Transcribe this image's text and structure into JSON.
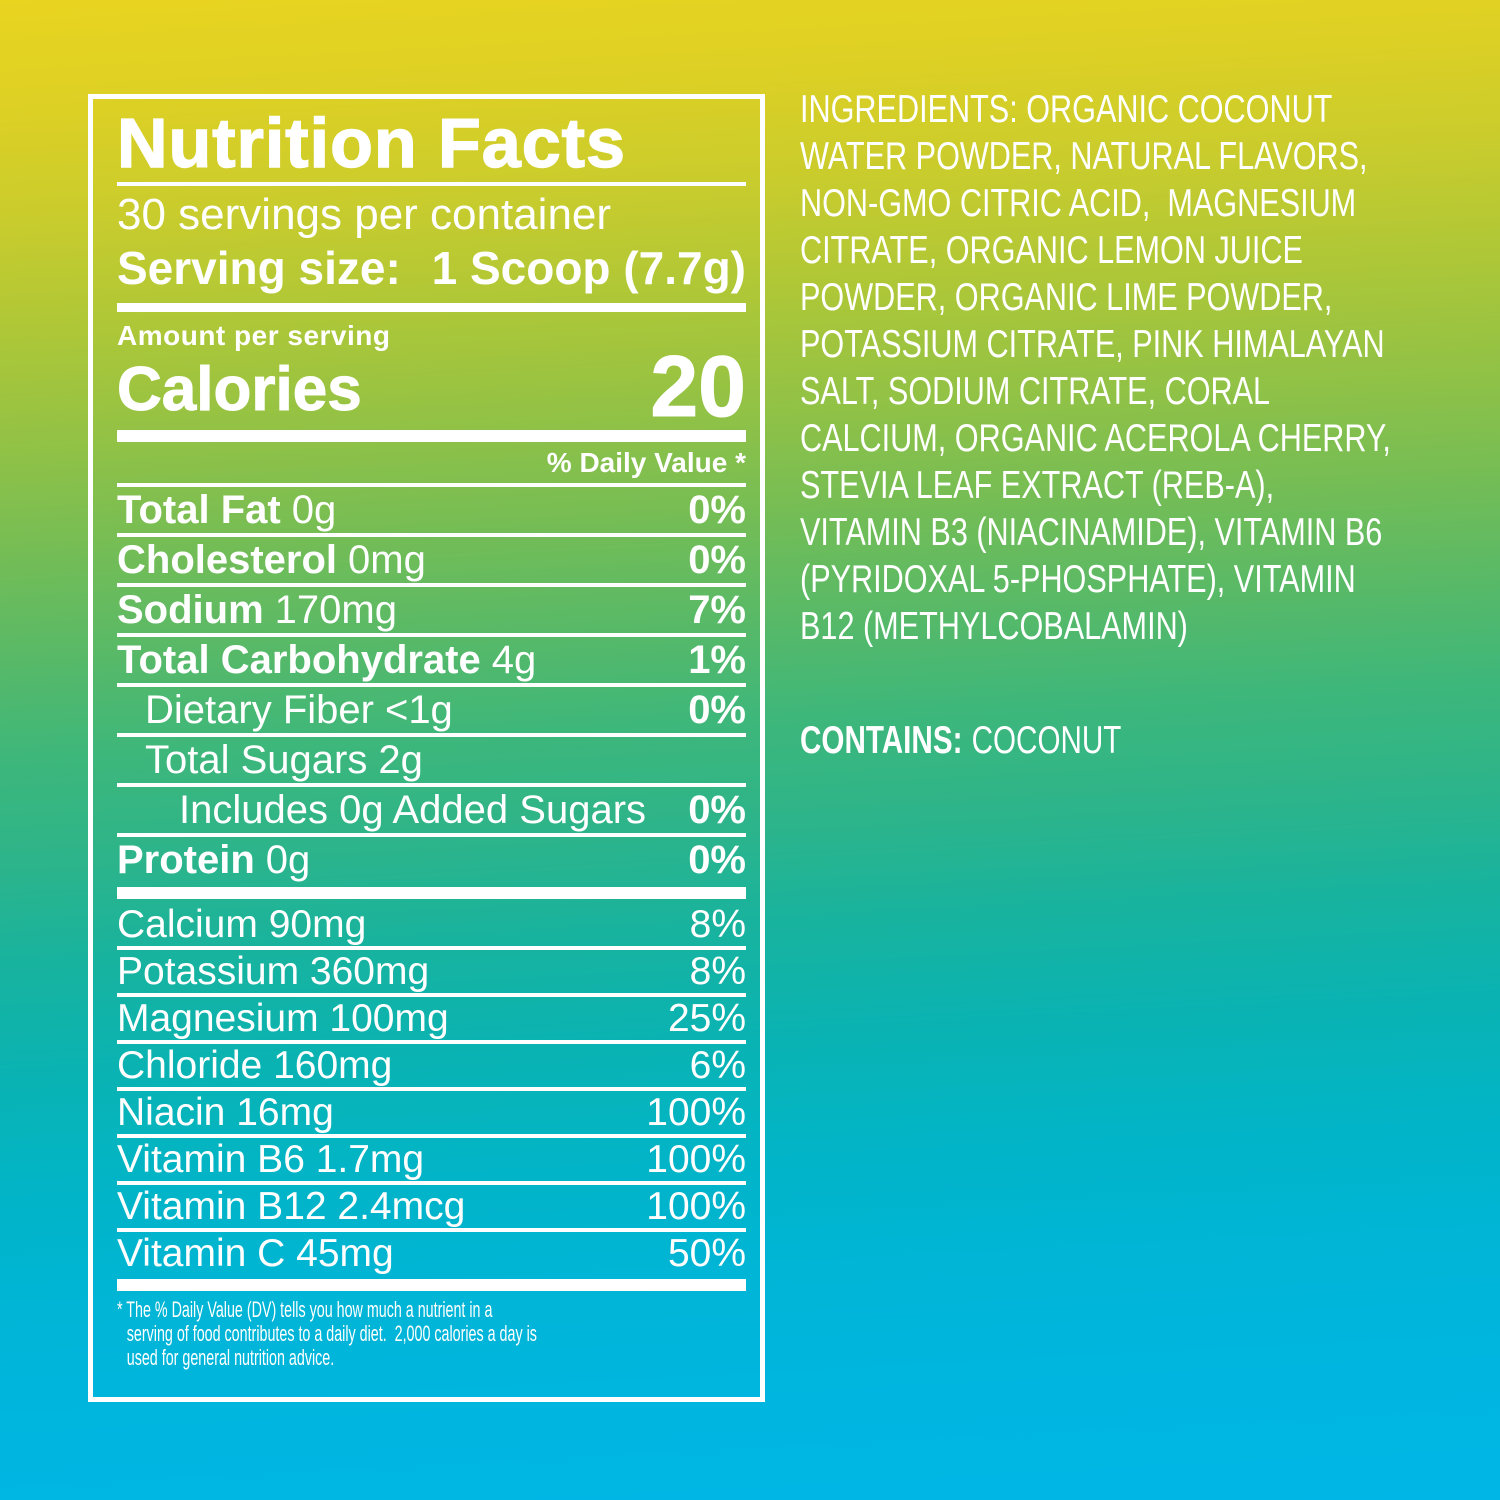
{
  "colors": {
    "text": "#ffffff",
    "gradient_top": "#e9d420",
    "gradient_middle": "#2cb48b",
    "gradient_bottom": "#00b6e6"
  },
  "nutrition_label": {
    "title": "Nutrition Facts",
    "servings_per_container": "30 servings per container",
    "serving_size_label": "Serving size:",
    "serving_size_value": "1 Scoop (7.7g)",
    "amount_per_serving": "Amount per serving",
    "calories_label": "Calories",
    "calories_value": "20",
    "daily_value_header": "% Daily Value *",
    "main_rows": [
      {
        "name": "Total Fat",
        "amount": "0g",
        "dv": "0%"
      },
      {
        "name": "Cholesterol",
        "amount": "0mg",
        "dv": "0%"
      },
      {
        "name": "Sodium",
        "amount": "170mg",
        "dv": "7%"
      },
      {
        "name": "Total Carbohydrate",
        "amount": "4g",
        "dv": "1%"
      },
      {
        "name": "Dietary Fiber",
        "amount": "<1g",
        "dv": "0%"
      },
      {
        "name": "Total Sugars",
        "amount": "2g",
        "dv": ""
      },
      {
        "name": "Includes 0g Added Sugars",
        "amount": "",
        "dv": "0%"
      },
      {
        "name": "Protein",
        "amount": "0g",
        "dv": "0%"
      }
    ],
    "micro_rows": [
      {
        "name": "Calcium 90mg",
        "dv": "8%"
      },
      {
        "name": "Potassium 360mg",
        "dv": "8%"
      },
      {
        "name": "Magnesium 100mg",
        "dv": "25%"
      },
      {
        "name": "Chloride 160mg",
        "dv": "6%"
      },
      {
        "name": "Niacin 16mg",
        "dv": "100%"
      },
      {
        "name": "Vitamin B6 1.7mg",
        "dv": "100%"
      },
      {
        "name": "Vitamin B12 2.4mcg",
        "dv": "100%"
      },
      {
        "name": "Vitamin C 45mg",
        "dv": "50%"
      }
    ],
    "footnote": "* The % Daily Value (DV) tells you how much a nutrient in a\nserving of food contributes to a daily diet.  2,000 calories a day is\nused for general nutrition advice."
  },
  "ingredients_panel": {
    "ingredients_text": "INGREDIENTS: ORGANIC COCONUT\nWATER POWDER, NATURAL FLAVORS,\nNON-GMO CITRIC ACID,  MAGNESIUM\nCITRATE, ORGANIC LEMON JUICE\nPOWDER, ORGANIC LIME POWDER,\nPOTASSIUM CITRATE, PINK HIMALAYAN\nSALT, SODIUM CITRATE, CORAL\nCALCIUM, ORGANIC ACEROLA CHERRY,\nSTEVIA LEAF EXTRACT (REB-A),\nVITAMIN B3 (NIACINAMIDE), VITAMIN B6\n(PYRIDOXAL 5-PHOSPHATE), VITAMIN\nB12 (METHYLCOBALAMIN)",
    "contains_label": "CONTAINS:",
    "contains_value": "COCONUT"
  }
}
